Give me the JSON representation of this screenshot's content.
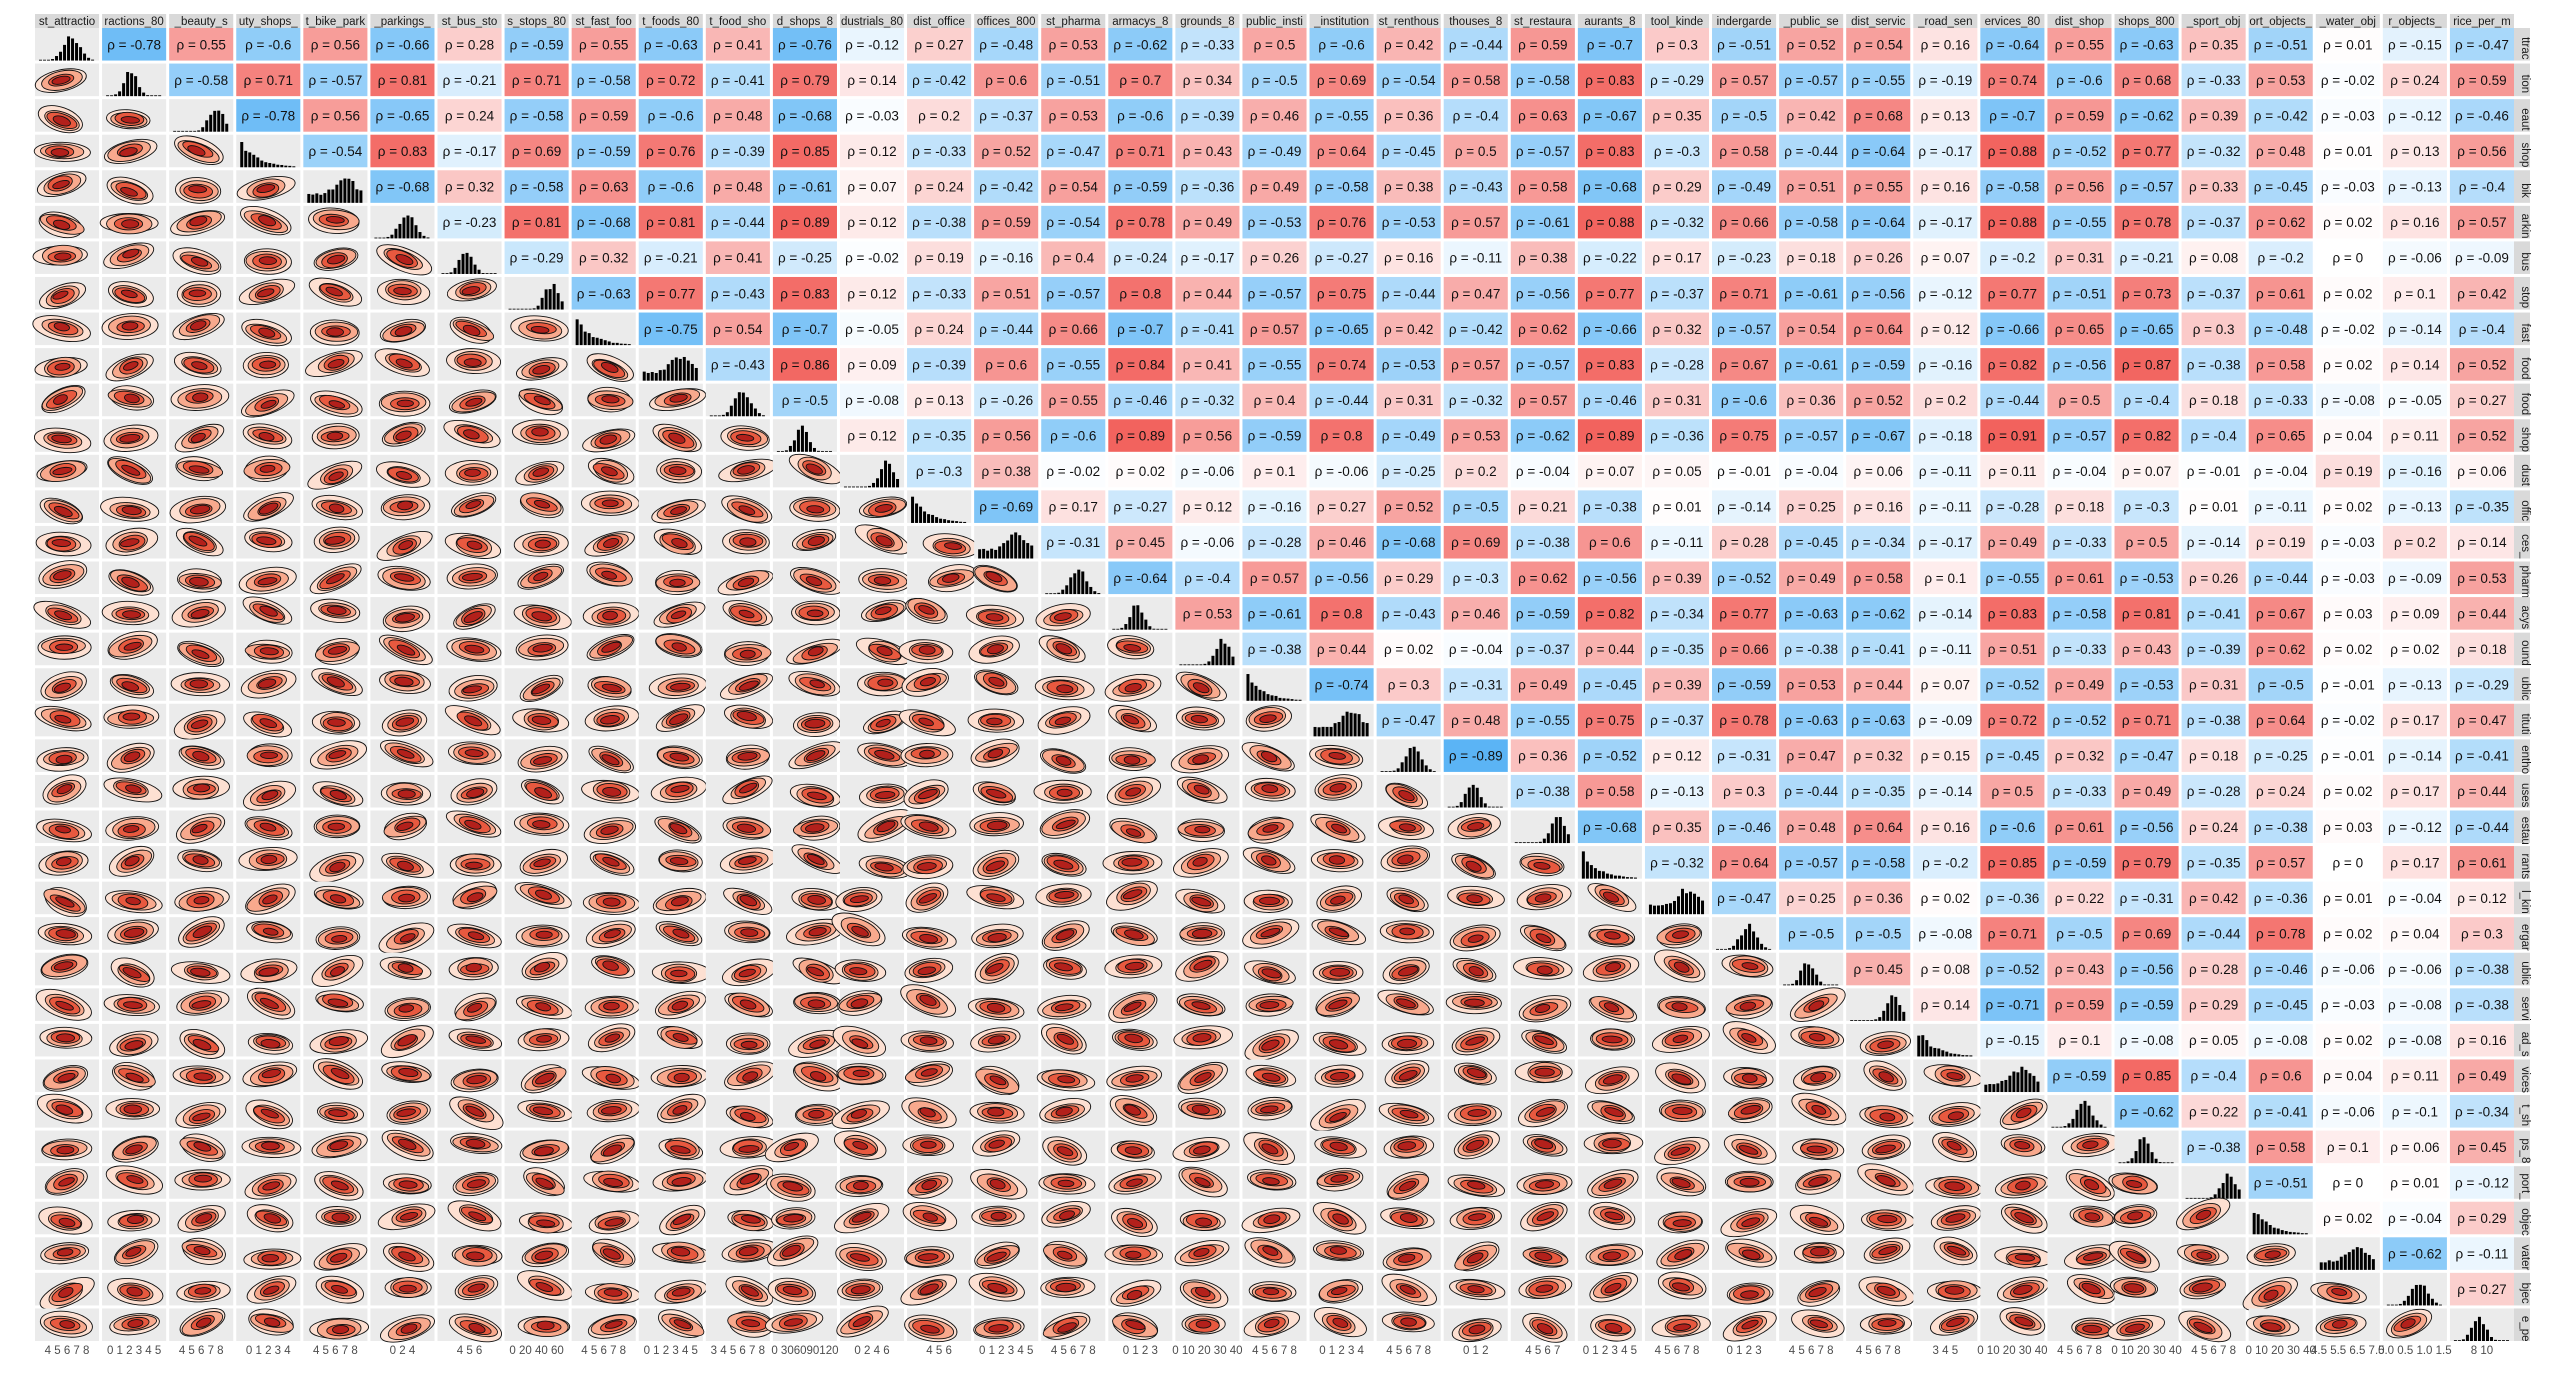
{
  "chart_data": {
    "type": "heatmap",
    "panel_type": "pairs-correlation-matrix",
    "upper_panels": "spearman-correlation-tiles",
    "lower_panels": "density-contours",
    "diagonal_panels": "histograms",
    "corr_color_scale": {
      "negative": "#5ab4f5",
      "zero": "#ffffff",
      "positive": "#f2625d"
    },
    "variables_top": [
      "st_attractio",
      "ractions_80",
      "_beauty_s",
      "uty_shops_",
      "t_bike_park",
      "_parkings_",
      "st_bus_sto",
      "s_stops_80",
      "st_fast_foo",
      "t_foods_80",
      "t_food_sho",
      "d_shops_8",
      "dustrials_80",
      "dist_office",
      "offices_800",
      "st_pharma",
      "armacys_8",
      "grounds_8",
      "public_insti",
      "_institution",
      "st_renthous",
      "thouses_8",
      "st_restaura",
      "aurants_8",
      "tool_kinde",
      "indergarde",
      "_public_se",
      "dist_servic",
      "_road_sen",
      "ervices_80",
      "dist_shop",
      "shops_800",
      "_sport_obj",
      "ort_objects_",
      "_water_obj",
      "r_objects_",
      "rice_per_m"
    ],
    "variables_right": [
      "ttrac",
      "tion",
      "eaut",
      "shop",
      "bik",
      "arkin",
      "bus",
      "stop",
      "fast",
      "food",
      "food",
      "shop",
      "dust",
      "offic",
      "ces_",
      "pharm",
      "acys",
      "ound",
      "ublic",
      "tituti",
      "entho",
      "uses",
      "estau",
      "rants",
      "l_kin",
      "ergar",
      "ublic",
      "servi",
      "ad_s",
      "vices",
      "t_sh",
      "ps_8",
      "port_",
      "objec",
      "vater",
      "bjec",
      "e_pe"
    ],
    "tick_labels": [
      "4 5 6 7 8",
      "0 1 2 3 4 5",
      "4 5 6 7 8",
      "0 1 2 3 4",
      "4 5 6 7 8",
      "0 2 4",
      "4 5 6",
      "0 20 40 60",
      "4 5 6 7 8",
      "0 1 2 3 4 5",
      "3 4 5 6 7 8",
      "0 306090120",
      "0 2 4 6",
      "4 5 6",
      "0 1 2 3 4 5",
      "4 5 6 7 8",
      "0 1 2 3",
      "0 10 20 30 40",
      "4 5 6 7 8",
      "0 1 2 3 4",
      "4 5 6 7 8",
      "0 1 2",
      "4 5 6 7",
      "0 1 2 3 4 5",
      "4 5 6 7 8",
      "0 1 2 3",
      "4 5 6 7 8",
      "4 5 6 7 8",
      "3 4 5",
      "0 10 20 30 40",
      "4 5 6 7 8",
      "0 10 20 30 40",
      "4 5 6 7 8",
      "0 10 20 30 40",
      "4.5 5.5 6.5 7.5",
      "0.0 0.5 1.0 1.5",
      "8 10"
    ],
    "correlations": [
      [
        -0.78,
        0.55,
        -0.6,
        0.56,
        -0.66,
        0.28,
        -0.59,
        0.55,
        -0.63,
        0.41,
        -0.76,
        -0.12,
        0.27,
        -0.48,
        0.53,
        -0.62,
        -0.33,
        0.5,
        -0.6,
        0.42,
        -0.44,
        0.59,
        -0.7,
        0.3,
        -0.51,
        0.52,
        0.54,
        0.16,
        -0.64,
        0.55,
        -0.63,
        0.35,
        -0.51,
        0.01,
        -0.15,
        -0.47
      ],
      [
        -0.58,
        0.71,
        -0.57,
        0.81,
        -0.21,
        0.71,
        -0.58,
        0.72,
        -0.41,
        0.79,
        0.14,
        -0.42,
        0.6,
        -0.51,
        0.7,
        0.34,
        -0.5,
        0.69,
        -0.54,
        0.58,
        -0.58,
        0.83,
        -0.29,
        0.57,
        -0.57,
        -0.55,
        -0.19,
        0.74,
        -0.6,
        0.68,
        -0.33,
        0.53,
        -0.02,
        0.24,
        0.59
      ],
      [
        -0.78,
        0.56,
        -0.65,
        0.24,
        -0.58,
        0.59,
        -0.6,
        0.48,
        -0.68,
        -0.03,
        0.2,
        -0.37,
        0.53,
        -0.6,
        -0.39,
        0.46,
        -0.55,
        0.36,
        -0.4,
        0.63,
        -0.67,
        0.35,
        -0.5,
        0.42,
        0.68,
        0.13,
        -0.7,
        0.59,
        -0.62,
        0.39,
        -0.42,
        -0.03,
        -0.12,
        -0.46
      ],
      [
        -0.54,
        0.83,
        -0.17,
        0.69,
        -0.59,
        0.76,
        -0.39,
        0.85,
        0.12,
        -0.33,
        0.52,
        -0.47,
        0.71,
        0.43,
        -0.49,
        0.64,
        -0.45,
        0.5,
        -0.57,
        0.83,
        -0.3,
        0.58,
        -0.44,
        -0.64,
        -0.17,
        0.88,
        -0.52,
        0.77,
        -0.32,
        0.48,
        0.01,
        0.13,
        0.56
      ],
      [
        -0.68,
        0.32,
        -0.58,
        0.63,
        -0.6,
        0.48,
        -0.61,
        0.07,
        0.24,
        -0.42,
        0.54,
        -0.59,
        -0.36,
        0.49,
        -0.58,
        0.38,
        -0.43,
        0.58,
        -0.68,
        0.29,
        -0.49,
        0.51,
        0.55,
        0.16,
        -0.58,
        0.56,
        -0.57,
        0.33,
        -0.45,
        -0.03,
        -0.13,
        -0.4
      ],
      [
        -0.23,
        0.81,
        -0.68,
        0.81,
        -0.44,
        0.89,
        0.12,
        -0.38,
        0.59,
        -0.54,
        0.78,
        0.49,
        -0.53,
        0.76,
        -0.53,
        0.57,
        -0.61,
        0.88,
        -0.32,
        0.66,
        -0.58,
        -0.64,
        -0.17,
        0.88,
        -0.55,
        0.78,
        -0.37,
        0.62,
        0.02,
        0.16,
        0.57
      ],
      [
        -0.29,
        0.32,
        -0.21,
        0.41,
        -0.25,
        -0.02,
        0.19,
        -0.16,
        0.4,
        -0.24,
        -0.17,
        0.26,
        -0.27,
        0.16,
        -0.11,
        0.38,
        -0.22,
        0.17,
        -0.23,
        0.18,
        0.26,
        0.07,
        -0.2,
        0.31,
        -0.21,
        0.08,
        -0.2,
        0.0,
        -0.06,
        -0.09
      ],
      [
        -0.63,
        0.77,
        -0.43,
        0.83,
        0.12,
        -0.33,
        0.51,
        -0.57,
        0.8,
        0.44,
        -0.57,
        0.75,
        -0.44,
        0.47,
        -0.56,
        0.77,
        -0.37,
        0.71,
        -0.61,
        -0.56,
        -0.12,
        0.77,
        -0.51,
        0.73,
        -0.37,
        0.61,
        0.02,
        0.1,
        0.42
      ],
      [
        -0.75,
        0.54,
        -0.7,
        -0.05,
        0.24,
        -0.44,
        0.66,
        -0.7,
        -0.41,
        0.57,
        -0.65,
        0.42,
        -0.42,
        0.62,
        -0.66,
        0.32,
        -0.57,
        0.54,
        0.64,
        0.12,
        -0.66,
        0.65,
        -0.65,
        0.3,
        -0.48,
        -0.02,
        -0.14,
        -0.4
      ],
      [
        -0.43,
        0.86,
        0.09,
        -0.39,
        0.6,
        -0.55,
        0.84,
        0.41,
        -0.55,
        0.74,
        -0.53,
        0.57,
        -0.57,
        0.83,
        -0.28,
        0.67,
        -0.61,
        -0.59,
        -0.16,
        0.82,
        -0.56,
        0.87,
        -0.38,
        0.58,
        0.02,
        0.14,
        0.52
      ],
      [
        -0.5,
        -0.08,
        0.13,
        -0.26,
        0.55,
        -0.46,
        -0.32,
        0.4,
        -0.44,
        0.31,
        -0.32,
        0.57,
        -0.46,
        0.31,
        -0.6,
        0.36,
        0.52,
        0.2,
        -0.44,
        0.5,
        -0.4,
        0.18,
        -0.33,
        -0.08,
        -0.05,
        0.27
      ],
      [
        0.12,
        -0.35,
        0.56,
        -0.6,
        0.89,
        0.56,
        -0.59,
        0.8,
        -0.49,
        0.53,
        -0.62,
        0.89,
        -0.36,
        0.75,
        -0.57,
        -0.67,
        -0.18,
        0.91,
        -0.57,
        0.82,
        -0.4,
        0.65,
        0.04,
        0.11,
        0.52
      ],
      [
        -0.3,
        0.38,
        -0.02,
        0.02,
        -0.06,
        0.1,
        -0.06,
        -0.25,
        0.2,
        -0.04,
        0.07,
        0.05,
        -0.01,
        -0.04,
        0.06,
        -0.11,
        0.11,
        -0.04,
        0.07,
        -0.01,
        -0.04,
        0.19,
        -0.16,
        0.06
      ],
      [
        -0.69,
        0.17,
        -0.27,
        0.12,
        -0.16,
        0.27,
        0.52,
        -0.5,
        0.21,
        -0.38,
        0.01,
        -0.14,
        0.25,
        0.16,
        -0.11,
        -0.28,
        0.18,
        -0.3,
        0.01,
        -0.11,
        0.02,
        -0.13,
        -0.35
      ],
      [
        -0.31,
        0.45,
        -0.06,
        -0.28,
        0.46,
        -0.68,
        0.69,
        -0.38,
        0.6,
        -0.11,
        0.28,
        -0.45,
        -0.34,
        -0.17,
        0.49,
        -0.33,
        0.5,
        -0.14,
        0.19,
        -0.03,
        0.2,
        0.14
      ],
      [
        -0.64,
        -0.4,
        0.57,
        -0.56,
        0.29,
        -0.3,
        0.62,
        -0.56,
        0.39,
        -0.52,
        0.49,
        0.58,
        0.1,
        -0.55,
        0.61,
        -0.53,
        0.26,
        -0.44,
        -0.03,
        -0.09,
        0.53
      ],
      [
        0.53,
        -0.61,
        0.8,
        -0.43,
        0.46,
        -0.59,
        0.82,
        -0.34,
        0.77,
        -0.63,
        -0.62,
        -0.14,
        0.83,
        -0.58,
        0.81,
        -0.41,
        0.67,
        0.03,
        0.09,
        0.44
      ],
      [
        -0.38,
        0.44,
        0.02,
        -0.04,
        -0.37,
        0.44,
        -0.35,
        0.66,
        -0.38,
        -0.41,
        -0.11,
        0.51,
        -0.33,
        0.43,
        -0.39,
        0.62,
        0.02,
        0.02,
        0.18
      ],
      [
        -0.74,
        0.3,
        -0.31,
        0.49,
        -0.45,
        0.39,
        -0.59,
        0.53,
        0.44,
        0.07,
        -0.52,
        0.49,
        -0.53,
        0.31,
        -0.5,
        -0.01,
        -0.13,
        -0.29
      ],
      [
        -0.47,
        0.48,
        -0.55,
        0.75,
        -0.37,
        0.78,
        -0.63,
        -0.63,
        -0.09,
        0.72,
        -0.52,
        0.71,
        -0.38,
        0.64,
        -0.02,
        0.17,
        0.47
      ],
      [
        -0.89,
        0.36,
        -0.52,
        0.12,
        -0.31,
        0.47,
        0.32,
        0.15,
        -0.45,
        0.32,
        -0.47,
        0.18,
        -0.25,
        -0.01,
        -0.14,
        -0.41
      ],
      [
        -0.38,
        0.58,
        -0.13,
        0.3,
        -0.44,
        -0.35,
        -0.14,
        0.5,
        -0.33,
        0.49,
        -0.28,
        0.24,
        0.02,
        0.17,
        0.44
      ],
      [
        -0.68,
        0.35,
        -0.46,
        0.48,
        0.64,
        0.16,
        -0.6,
        0.61,
        -0.56,
        0.24,
        -0.38,
        0.03,
        -0.12,
        -0.44
      ],
      [
        -0.32,
        0.64,
        -0.57,
        -0.58,
        -0.2,
        0.85,
        -0.59,
        0.79,
        -0.35,
        0.57,
        0.0,
        0.17,
        0.61
      ],
      [
        -0.47,
        0.25,
        0.36,
        0.02,
        -0.36,
        0.22,
        -0.31,
        0.42,
        -0.36,
        0.01,
        -0.04,
        0.12
      ],
      [
        -0.5,
        -0.5,
        -0.08,
        0.71,
        -0.5,
        0.69,
        -0.44,
        0.78,
        0.02,
        0.04,
        0.3
      ],
      [
        0.45,
        0.08,
        -0.52,
        0.43,
        -0.56,
        0.28,
        -0.46,
        -0.06,
        -0.06,
        -0.38
      ],
      [
        0.14,
        -0.71,
        0.59,
        -0.59,
        0.29,
        -0.45,
        -0.03,
        -0.08,
        -0.38
      ],
      [
        -0.15,
        0.1,
        -0.08,
        0.05,
        -0.08,
        0.02,
        -0.08,
        0.16
      ],
      [
        -0.59,
        0.85,
        -0.4,
        0.6,
        0.04,
        0.11,
        0.49
      ],
      [
        -0.62,
        0.22,
        -0.41,
        -0.06,
        -0.1,
        -0.34
      ],
      [
        -0.38,
        0.58,
        0.1,
        0.06,
        0.45
      ],
      [
        -0.51,
        0.0,
        0.01,
        -0.12
      ],
      [
        0.02,
        -0.04,
        0.29
      ],
      [
        -0.62,
        -0.11
      ],
      [
        0.27
      ]
    ]
  }
}
